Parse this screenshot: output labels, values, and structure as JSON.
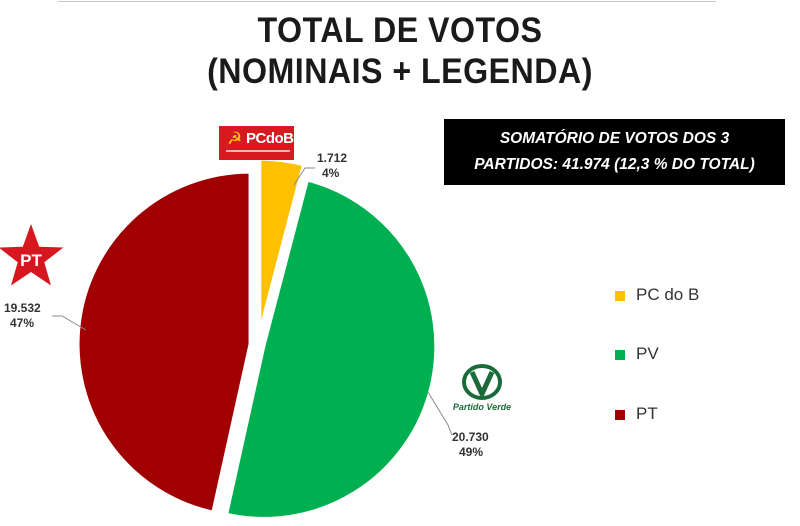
{
  "title": {
    "line1": "TOTAL DE VOTOS",
    "line2": "(NOMINAIS + LEGENDA)"
  },
  "summary": {
    "line1": "SOMATÓRIO DE VOTOS DOS 3",
    "line2": "PARTIDOS: 41.974 (12,3 % DO TOTAL)"
  },
  "logos": {
    "pcdob": "PCdoB",
    "pt": "PT",
    "pv": "Partido Verde"
  },
  "chart_data": {
    "type": "pie",
    "slices": [
      {
        "label": "PC do B",
        "value": 1712,
        "value_label": "1.712",
        "percent_label": "4%",
        "color": "#ffc000"
      },
      {
        "label": "PV",
        "value": 20730,
        "value_label": "20.730",
        "percent_label": "49%",
        "color": "#00b050"
      },
      {
        "label": "PT",
        "value": 19532,
        "value_label": "19.532",
        "percent_label": "47%",
        "color": "#a00000"
      }
    ],
    "legend": [
      "PC do B",
      "PV",
      "PT"
    ],
    "legend_position": "right",
    "exploded": true
  }
}
